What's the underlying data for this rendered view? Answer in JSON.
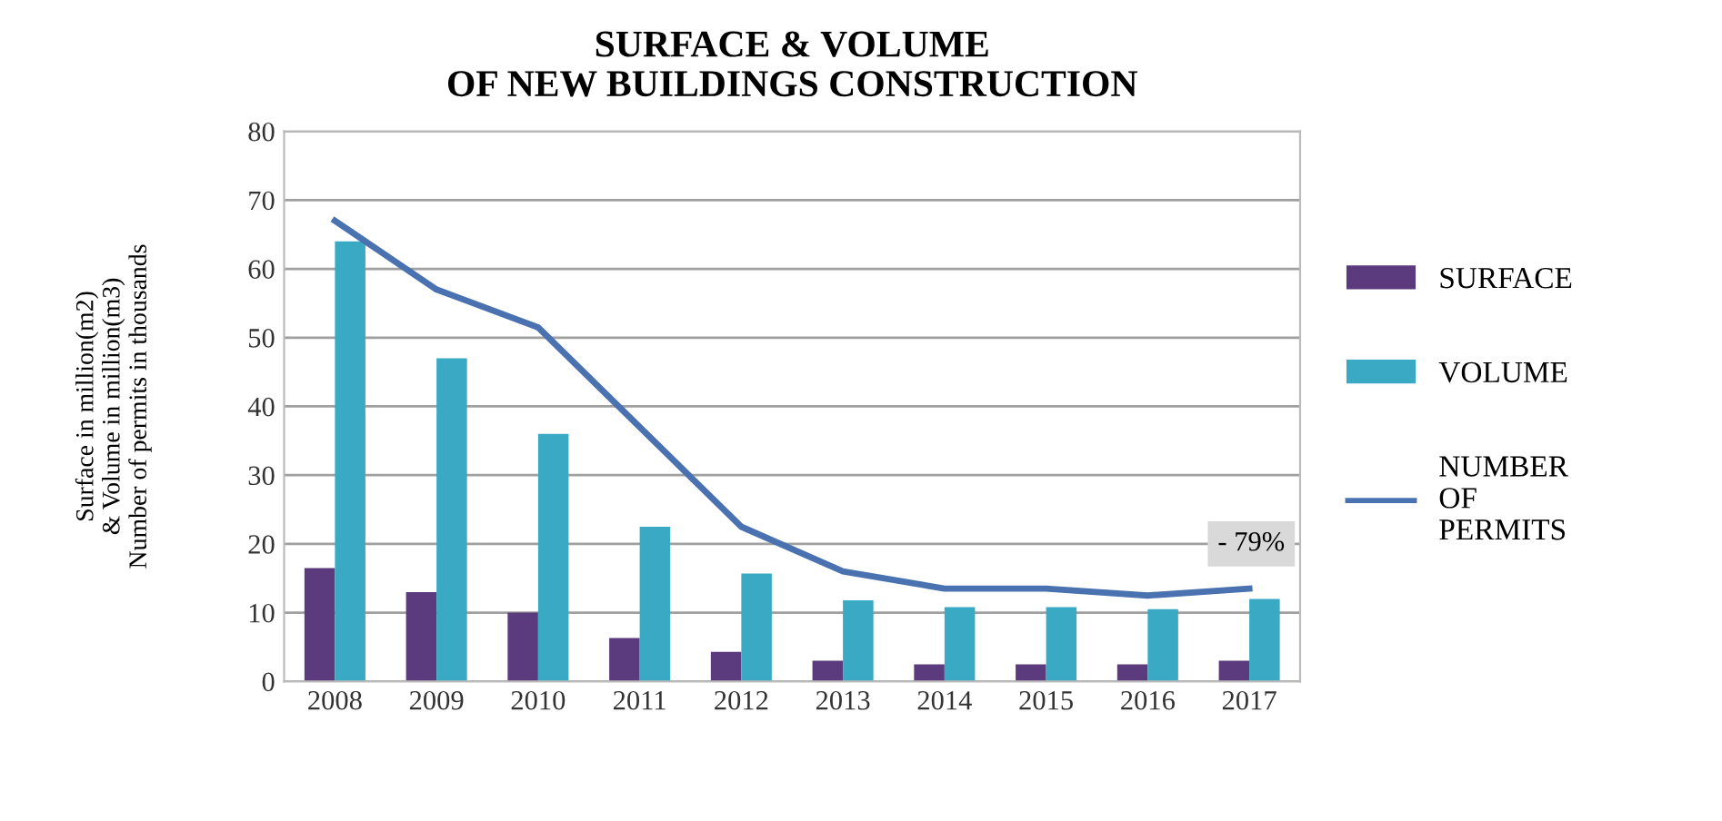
{
  "chart_data": {
    "type": "bar",
    "title": "SURFACE & VOLUME\nOF NEW BUILDINGS CONSTRUCTION",
    "ylabel": "Surface in million(m2)\n& Volume in million(m3)\nNumber of permits in thousands",
    "categories": [
      "2008",
      "2009",
      "2010",
      "2011",
      "2012",
      "2013",
      "2014",
      "2015",
      "2016",
      "2017"
    ],
    "series": [
      {
        "name": "SURFACE",
        "color": "#5b3a7e",
        "values": [
          16.5,
          13,
          10,
          6.3,
          4.3,
          3,
          2.5,
          2.5,
          2.5,
          3
        ]
      },
      {
        "name": "VOLUME",
        "color": "#3aaac4",
        "values": [
          64,
          47,
          36,
          22.5,
          15.7,
          11.8,
          10.8,
          10.8,
          10.5,
          12
        ]
      },
      {
        "name": "NUMBER\nOF\nPERMITS",
        "type": "line",
        "color": "#4a72b0",
        "values": [
          67,
          57,
          51.5,
          37,
          22.5,
          16,
          13.5,
          13.5,
          12.5,
          13.5
        ]
      }
    ],
    "annotations": [
      "- 79%"
    ],
    "ylim": [
      0,
      80
    ],
    "yticks": [
      0,
      10,
      20,
      30,
      40,
      50,
      60,
      70,
      80
    ],
    "grid": "y",
    "legend": "right"
  }
}
